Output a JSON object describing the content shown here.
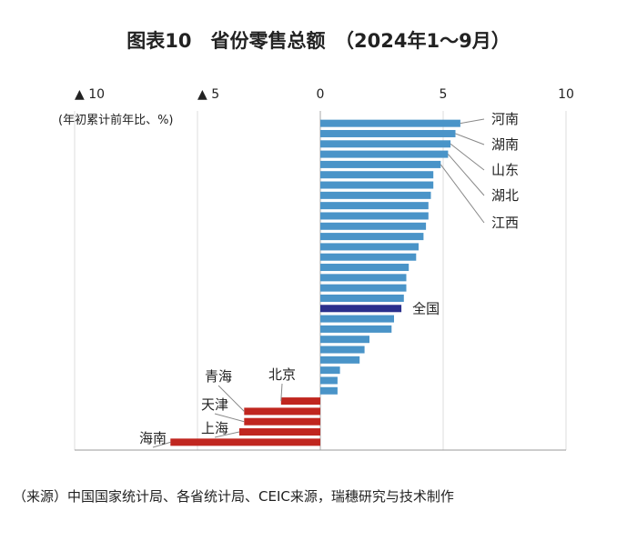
{
  "chart_data": {
    "type": "hbar",
    "title": "图表10　省份零售总额　（2024年1～9月）",
    "axis_label": "(年初累计前年比、%)",
    "source": "（来源）中国国家统计局、各省统计局、CEIC来源，瑞穗研究与技术制作",
    "categories": [
      "河南",
      "湖南",
      "山东",
      "湖北",
      "江西",
      null,
      null,
      null,
      null,
      null,
      null,
      null,
      null,
      null,
      null,
      null,
      null,
      null,
      "全国",
      null,
      null,
      null,
      null,
      null,
      null,
      null,
      null,
      "北京",
      "青海",
      "天津",
      "上海",
      "海南"
    ],
    "values": [
      5.7,
      5.5,
      5.3,
      5.2,
      4.9,
      4.6,
      4.6,
      4.5,
      4.4,
      4.4,
      4.3,
      4.2,
      4.0,
      3.9,
      3.6,
      3.5,
      3.5,
      3.4,
      3.3,
      3.0,
      2.9,
      2.0,
      1.8,
      1.6,
      0.8,
      0.7,
      0.7,
      -1.6,
      -3.1,
      -3.1,
      -3.3,
      -6.1
    ],
    "colors": {
      "positive": "#4a94c8",
      "national": "#2a2f8c",
      "negative": "#c0261f"
    },
    "xlim": [
      -10,
      10
    ],
    "xticks": [
      {
        "value": -10,
        "label": "▲ 10"
      },
      {
        "value": -5,
        "label": "▲ 5"
      },
      0,
      5,
      10
    ],
    "grid": true
  }
}
